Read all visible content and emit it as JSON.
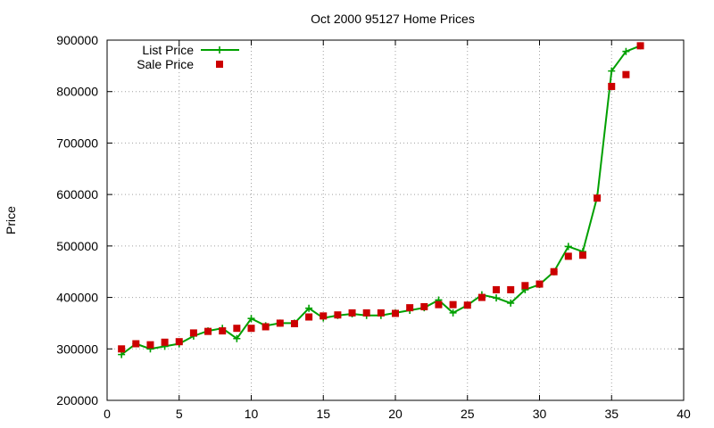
{
  "chart_data": {
    "type": "line",
    "title": "Oct 2000 95127 Home Prices",
    "xlabel": "",
    "ylabel": "Price",
    "xlim": [
      0,
      40
    ],
    "ylim": [
      200000,
      900000
    ],
    "x_ticks": [
      "0",
      "5",
      "10",
      "15",
      "20",
      "25",
      "30",
      "35",
      "40"
    ],
    "y_ticks": [
      "200000",
      "300000",
      "400000",
      "500000",
      "600000",
      "700000",
      "800000",
      "900000"
    ],
    "grid": true,
    "legend_position": "top-left",
    "series": [
      {
        "name": "List Price",
        "style": "line-with-plus-markers",
        "color": "#00a000",
        "x": [
          1,
          2,
          3,
          4,
          5,
          6,
          7,
          8,
          9,
          10,
          11,
          12,
          13,
          14,
          15,
          16,
          17,
          18,
          19,
          20,
          21,
          22,
          23,
          24,
          25,
          26,
          27,
          28,
          29,
          30,
          31,
          32,
          33,
          34,
          35,
          36,
          37
        ],
        "y": [
          289000,
          310000,
          300000,
          305000,
          310000,
          325000,
          335000,
          340000,
          320000,
          359000,
          345000,
          350000,
          350000,
          379000,
          360000,
          365000,
          368000,
          365000,
          365000,
          370000,
          375000,
          380000,
          395000,
          370000,
          385000,
          405000,
          399000,
          389000,
          415000,
          425000,
          450000,
          499000,
          489000,
          595000,
          840000,
          878000,
          889000
        ]
      },
      {
        "name": "Sale Price",
        "style": "square-markers",
        "color": "#cc0000",
        "x": [
          1,
          2,
          3,
          4,
          5,
          6,
          7,
          8,
          9,
          10,
          11,
          12,
          13,
          14,
          15,
          16,
          17,
          18,
          19,
          20,
          21,
          22,
          23,
          24,
          25,
          26,
          27,
          28,
          29,
          30,
          31,
          32,
          33,
          34,
          35,
          36,
          37
        ],
        "y": [
          300000,
          310000,
          308000,
          313000,
          314000,
          331000,
          334000,
          335000,
          340000,
          340000,
          343000,
          350000,
          349000,
          362000,
          364000,
          366000,
          370000,
          370000,
          370000,
          369000,
          380000,
          382000,
          386000,
          386000,
          385000,
          400000,
          415000,
          415000,
          423000,
          426000,
          450000,
          480000,
          482000,
          593000,
          810000,
          833000,
          889000
        ]
      }
    ]
  }
}
